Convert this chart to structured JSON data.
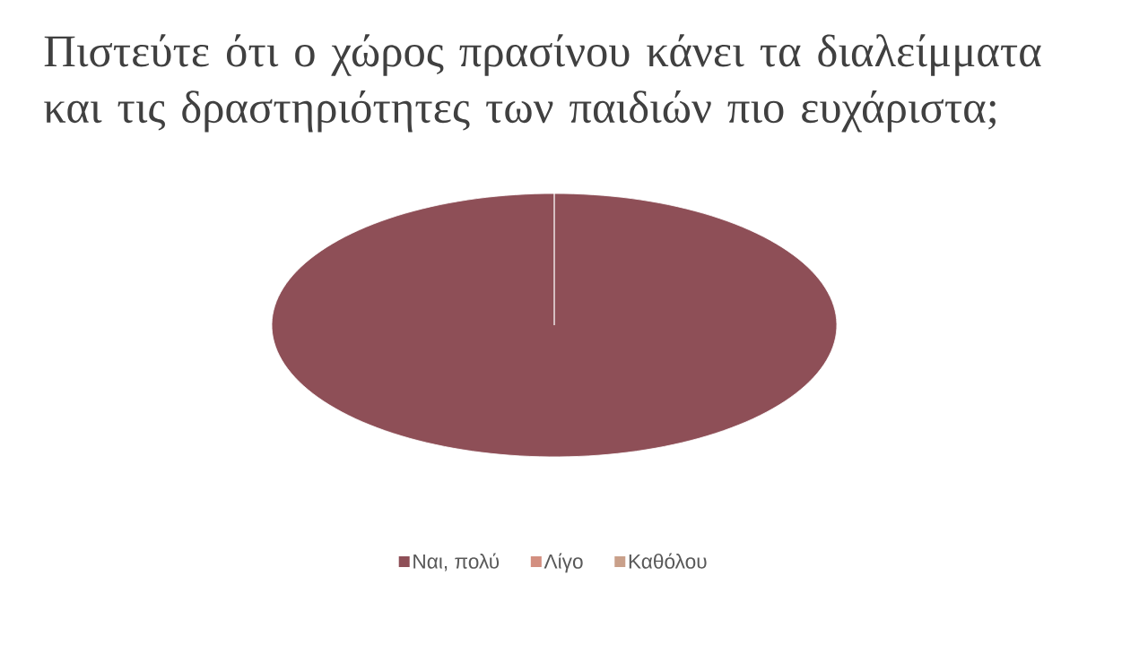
{
  "chart_data": {
    "type": "pie",
    "title": "Πιστεύτε ότι ο χώρος πρασίνου κάνει τα διαλείμματα και τις δραστηριότητες των παιδιών πιο ευχάριστα;",
    "categories": [
      "Ναι, πολύ",
      "Λίγο",
      "Καθόλου"
    ],
    "values": [
      100,
      0,
      0
    ],
    "colors": [
      "#8e4f57",
      "#d38f80",
      "#c9a08a"
    ],
    "legend": "bottom"
  }
}
